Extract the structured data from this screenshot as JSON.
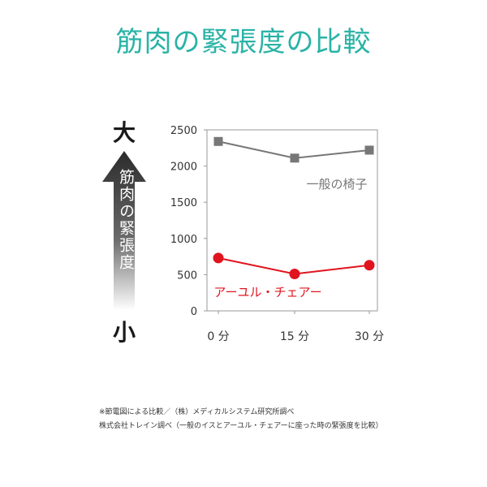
{
  "title": "筋肉の緊張度の比較",
  "scale": {
    "high_label": "大",
    "low_label": "小",
    "axis_text": "筋肉の緊張度"
  },
  "chart_data": {
    "type": "line",
    "categories": [
      "0 分",
      "15 分",
      "30 分"
    ],
    "yticks": [
      "0",
      "500",
      "1000",
      "1500",
      "2000",
      "2500"
    ],
    "ylim": [
      0,
      2500
    ],
    "grid": false,
    "series": [
      {
        "name": "一般の椅子",
        "values": [
          2340,
          2110,
          2220
        ],
        "color": "#777777",
        "marker": "square"
      },
      {
        "name": "アーユル・チェアー",
        "values": [
          730,
          510,
          630
        ],
        "color": "#e0141e",
        "marker": "circle"
      }
    ]
  },
  "footnotes": [
    "※節電図による比較／（株）メディカルシステム研究所調べ",
    "株式会社トレイン調べ（一般のイスとアーユル・チェアーに座った時の緊張度を比較）"
  ]
}
